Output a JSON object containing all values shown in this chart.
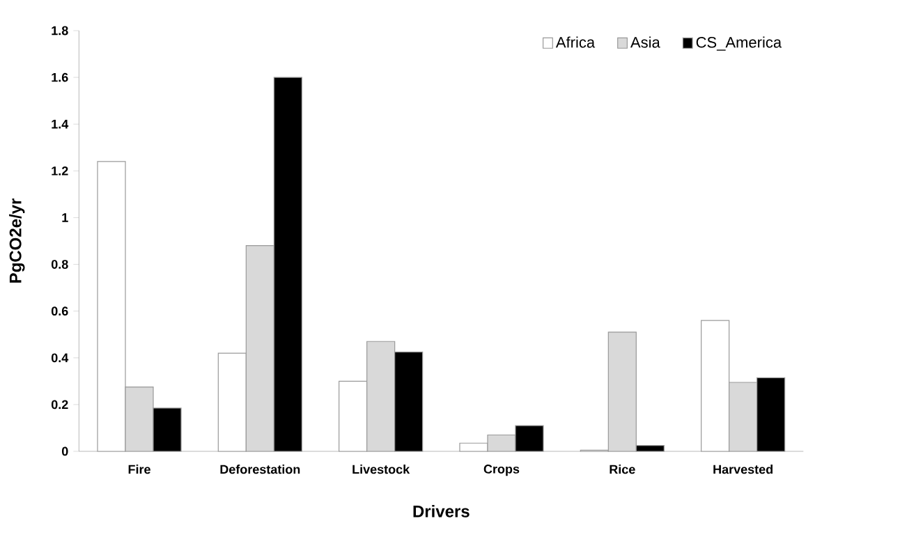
{
  "chart_data": {
    "type": "bar",
    "xlabel": "Drivers",
    "ylabel": "PgCO2e/yr",
    "categories": [
      "Fire",
      "Deforestation",
      "Livestock",
      "Crops",
      "Rice",
      "Harvested"
    ],
    "series": [
      {
        "name": "Africa",
        "color": "#ffffff",
        "values": [
          1.24,
          0.42,
          0.3,
          0.035,
          0.005,
          0.56
        ]
      },
      {
        "name": "Asia",
        "color": "#d9d9d9",
        "values": [
          0.275,
          0.88,
          0.47,
          0.07,
          0.51,
          0.295
        ]
      },
      {
        "name": "CS_America",
        "color": "#000000",
        "values": [
          0.185,
          1.6,
          0.425,
          0.11,
          0.025,
          0.315
        ]
      }
    ],
    "ylim": [
      0,
      1.8
    ],
    "yticks": [
      0,
      0.2,
      0.4,
      0.6,
      0.8,
      1,
      1.2,
      1.4,
      1.6,
      1.8
    ],
    "legend": "top right",
    "grid": false
  }
}
